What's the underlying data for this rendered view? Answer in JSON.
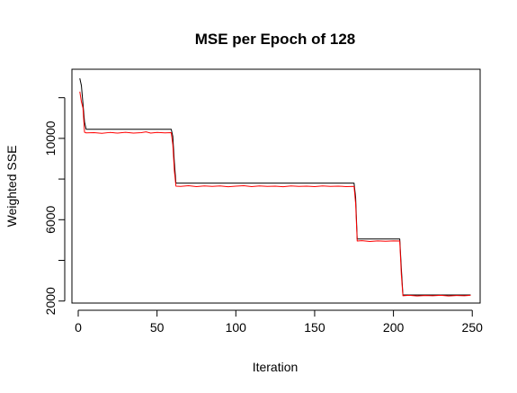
{
  "chart_data": {
    "type": "line",
    "title": "MSE per Epoch of 128",
    "xlabel": "Iteration",
    "ylabel": "Weighted SSE",
    "xlim": [
      -4,
      255
    ],
    "ylim": [
      1900,
      13400
    ],
    "x_ticks": [
      0,
      50,
      100,
      150,
      200,
      250
    ],
    "y_ticks": [
      2000,
      4000,
      6000,
      8000,
      10000,
      12000
    ],
    "y_tick_labels": [
      "2000",
      "",
      "6000",
      "",
      "10000",
      ""
    ],
    "grid": false,
    "series": [
      {
        "color": "#000000",
        "points": [
          [
            1,
            12950
          ],
          [
            2,
            12600
          ],
          [
            3,
            11700
          ],
          [
            4,
            10800
          ],
          [
            5,
            10450
          ],
          [
            59,
            10450
          ],
          [
            60,
            10100
          ],
          [
            61,
            8800
          ],
          [
            62,
            7800
          ],
          [
            175,
            7800
          ],
          [
            176,
            7100
          ],
          [
            177,
            5050
          ],
          [
            204,
            5050
          ],
          [
            205,
            3600
          ],
          [
            206,
            2300
          ],
          [
            249,
            2300
          ]
        ]
      },
      {
        "color": "#ff0000",
        "points": [
          [
            1,
            12300
          ],
          [
            2,
            11800
          ],
          [
            3,
            11500
          ],
          [
            4,
            10300
          ],
          [
            5,
            10270
          ],
          [
            10,
            10280
          ],
          [
            15,
            10250
          ],
          [
            20,
            10290
          ],
          [
            25,
            10260
          ],
          [
            30,
            10300
          ],
          [
            35,
            10260
          ],
          [
            40,
            10280
          ],
          [
            43,
            10320
          ],
          [
            46,
            10260
          ],
          [
            50,
            10290
          ],
          [
            55,
            10270
          ],
          [
            59,
            10280
          ],
          [
            60,
            9700
          ],
          [
            61,
            8400
          ],
          [
            62,
            7650
          ],
          [
            65,
            7640
          ],
          [
            70,
            7670
          ],
          [
            75,
            7630
          ],
          [
            80,
            7660
          ],
          [
            85,
            7640
          ],
          [
            90,
            7660
          ],
          [
            95,
            7620
          ],
          [
            100,
            7650
          ],
          [
            105,
            7670
          ],
          [
            110,
            7630
          ],
          [
            115,
            7660
          ],
          [
            120,
            7640
          ],
          [
            125,
            7650
          ],
          [
            130,
            7620
          ],
          [
            135,
            7660
          ],
          [
            140,
            7640
          ],
          [
            145,
            7650
          ],
          [
            150,
            7630
          ],
          [
            155,
            7660
          ],
          [
            160,
            7640
          ],
          [
            165,
            7650
          ],
          [
            170,
            7630
          ],
          [
            175,
            7640
          ],
          [
            176,
            6800
          ],
          [
            177,
            4950
          ],
          [
            180,
            4970
          ],
          [
            185,
            4930
          ],
          [
            190,
            4960
          ],
          [
            195,
            4940
          ],
          [
            200,
            4960
          ],
          [
            204,
            4950
          ],
          [
            205,
            3300
          ],
          [
            206,
            2260
          ],
          [
            210,
            2280
          ],
          [
            215,
            2250
          ],
          [
            220,
            2270
          ],
          [
            225,
            2260
          ],
          [
            230,
            2280
          ],
          [
            235,
            2250
          ],
          [
            240,
            2270
          ],
          [
            245,
            2260
          ],
          [
            249,
            2280
          ]
        ]
      }
    ]
  }
}
